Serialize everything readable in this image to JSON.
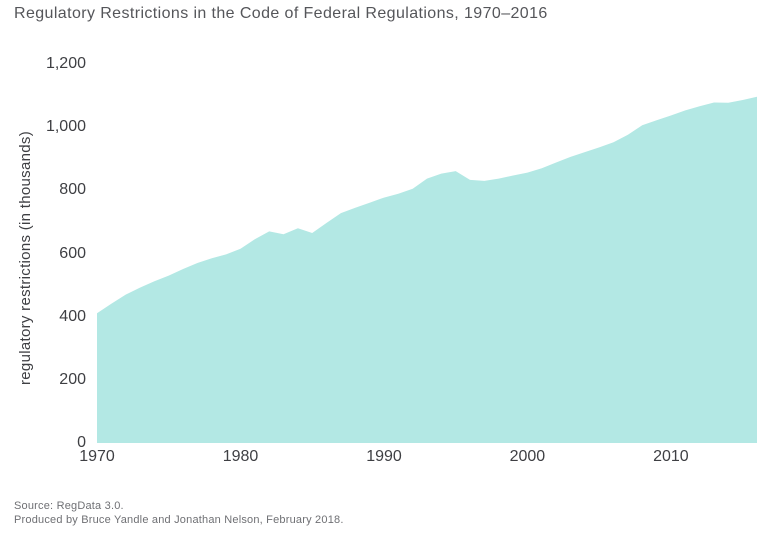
{
  "page": {
    "background": "#ffffff"
  },
  "chart_data": {
    "type": "area",
    "title": "Regulatory Restrictions in the Code of Federal Regulations, 1970–2016",
    "subtitle": "",
    "xlabel": "",
    "ylabel": "regulatory restrictions (in thousands)",
    "series_name": "regulatory restrictions",
    "x": [
      1970,
      1971,
      1972,
      1973,
      1974,
      1975,
      1976,
      1977,
      1978,
      1979,
      1980,
      1981,
      1982,
      1983,
      1984,
      1985,
      1986,
      1987,
      1988,
      1989,
      1990,
      1991,
      1992,
      1993,
      1994,
      1995,
      1996,
      1997,
      1998,
      1999,
      2000,
      2001,
      2002,
      2003,
      2004,
      2005,
      2006,
      2007,
      2008,
      2009,
      2010,
      2011,
      2012,
      2013,
      2014,
      2015,
      2016
    ],
    "values": [
      411,
      441,
      470,
      492,
      512,
      530,
      551,
      570,
      585,
      597,
      615,
      645,
      670,
      661,
      680,
      665,
      697,
      728,
      745,
      761,
      777,
      789,
      805,
      837,
      853,
      861,
      833,
      830,
      837,
      847,
      856,
      870,
      888,
      906,
      921,
      936,
      952,
      976,
      1006,
      1022,
      1037,
      1053,
      1066,
      1078,
      1077,
      1086,
      1096
    ],
    "xticks": [
      1970,
      1980,
      1990,
      2000,
      2010
    ],
    "yticks": [
      0,
      200,
      400,
      600,
      800,
      1000,
      1200
    ],
    "xlim": [
      1970,
      2016
    ],
    "ylim": [
      0,
      1200
    ],
    "grid": false,
    "legend_position": "none",
    "fill_color": "#b3e8e4"
  },
  "source": {
    "line1": "Source: RegData 3.0.",
    "line2": "Produced by Bruce Yandle and Jonathan Nelson, February 2018."
  },
  "colors": {
    "title_text": "#55565a",
    "axis_text": "#3e3f43",
    "source_text": "#6f7074",
    "area_fill": "#b3e8e4"
  }
}
